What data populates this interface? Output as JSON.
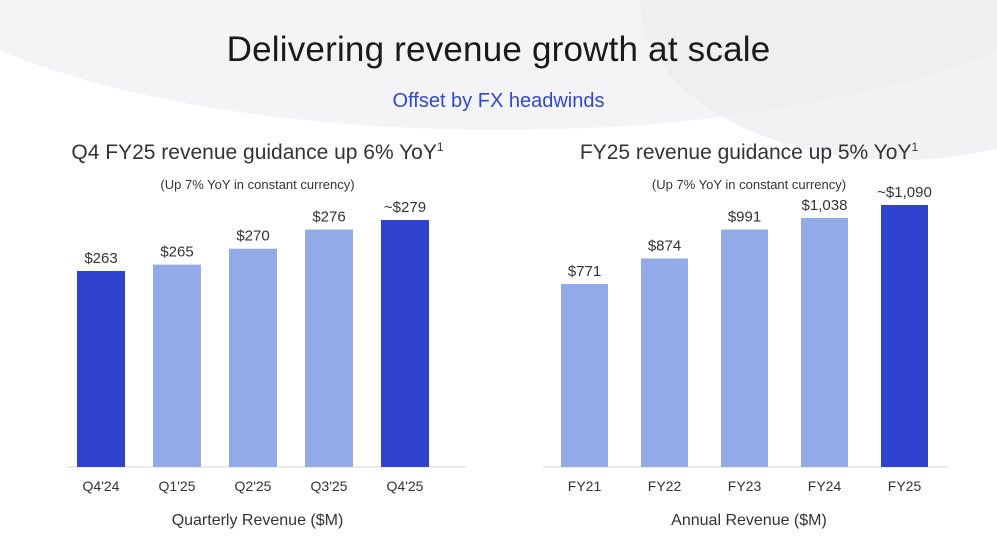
{
  "title": "Delivering revenue growth at scale",
  "subtitle": "Offset by FX headwinds",
  "colors": {
    "bar_light": "#92aae8",
    "bar_dark": "#2f43cf",
    "subtitle": "#2f48d0"
  },
  "chart_data": [
    {
      "type": "bar",
      "title": "Q4 FY25 revenue guidance up 6% YoY",
      "title_sup": "1",
      "subtitle": "(Up 7% YoY in constant currency)",
      "xlabel": "Quarterly Revenue ($M)",
      "ylabel": "",
      "categories": [
        "Q4'24",
        "Q1'25",
        "Q2'25",
        "Q3'25",
        "Q4'25"
      ],
      "values": [
        263,
        265,
        270,
        276,
        279
      ],
      "data_labels": [
        "$263",
        "$265",
        "$270",
        "$276",
        "~$279"
      ],
      "highlight": [
        true,
        false,
        false,
        false,
        true
      ],
      "grid": false,
      "legend": "none"
    },
    {
      "type": "bar",
      "title": "FY25 revenue guidance up 5% YoY",
      "title_sup": "1",
      "subtitle": "(Up 7% YoY in constant currency)",
      "xlabel": "Annual Revenue ($M)",
      "ylabel": "",
      "categories": [
        "FY21",
        "FY22",
        "FY23",
        "FY24",
        "FY25"
      ],
      "values": [
        771,
        874,
        991,
        1038,
        1090
      ],
      "data_labels": [
        "$771",
        "$874",
        "$991",
        "$1,038",
        "~$1,090"
      ],
      "highlight": [
        false,
        false,
        false,
        false,
        true
      ],
      "grid": false,
      "legend": "none"
    }
  ]
}
